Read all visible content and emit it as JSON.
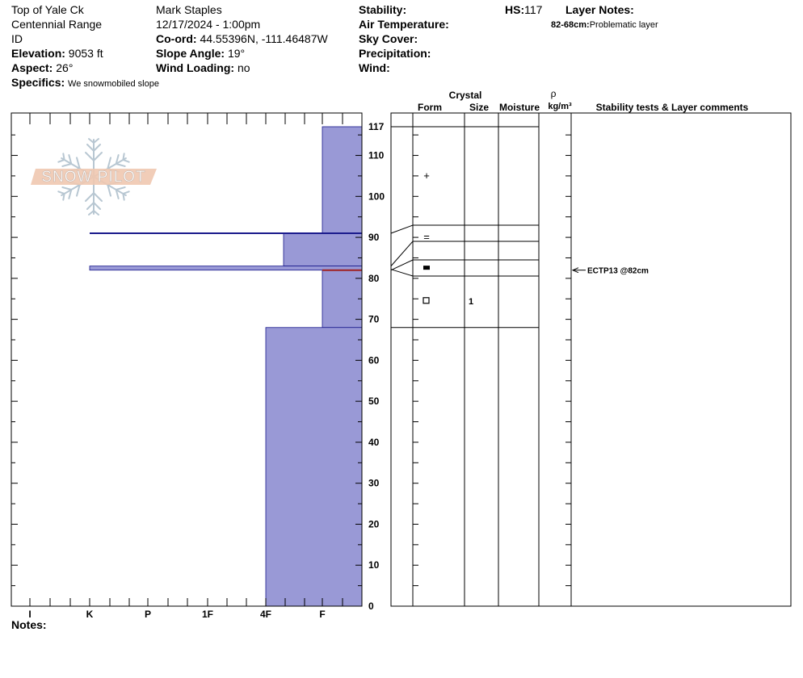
{
  "header": {
    "location": "Top of Yale Ck",
    "range": "Centennial Range",
    "state": "ID",
    "elevation_label": "Elevation:",
    "elevation": "9053 ft",
    "aspect_label": "Aspect:",
    "aspect": "26°",
    "specifics_label": "Specifics:",
    "specifics": "We snowmobiled slope",
    "observer": "Mark Staples",
    "datetime": "12/17/2024 - 1:00pm",
    "coord_label": "Co-ord:",
    "coord": "44.55396N, -111.46487W",
    "slope_label": "Slope Angle:",
    "slope": "19°",
    "wind_loading_label": "Wind Loading:",
    "wind_loading": "no",
    "stability_label": "Stability:",
    "air_temp_label": "Air Temperature:",
    "sky_cover_label": "Sky Cover:",
    "precip_label": "Precipitation:",
    "wind_label": "Wind:",
    "hs_label": "HS:",
    "hs": "117",
    "layer_notes_label": "Layer Notes:",
    "layer_note_range": "82-68cm:",
    "layer_note_text": "Problematic layer",
    "notes_label": "Notes:"
  },
  "table_headers": {
    "crystal": "Crystal",
    "form": "Form",
    "size": "Size",
    "moisture": "Moisture",
    "rho": "ρ",
    "density_unit": "kg/m³",
    "stability_comments": "Stability tests & Layer comments"
  },
  "logo_text": "SNOW PILOT",
  "chart_data": {
    "type": "bar",
    "title": "",
    "xlabel": "",
    "ylabel": "",
    "hardness_scale": [
      "I",
      "K",
      "P",
      "1F",
      "4F",
      "F"
    ],
    "ylim": [
      0,
      117
    ],
    "y_ticks": [
      0,
      10,
      20,
      30,
      40,
      50,
      60,
      70,
      80,
      90,
      100,
      110,
      117
    ],
    "layers": [
      {
        "bottom": 91,
        "top": 117,
        "hardness": "F"
      },
      {
        "bottom": 83,
        "top": 91,
        "hardness": "4F-"
      },
      {
        "bottom": 82,
        "top": 83,
        "hardness": "K"
      },
      {
        "bottom": 68,
        "top": 82,
        "hardness": "F"
      },
      {
        "bottom": 0,
        "top": 68,
        "hardness": "4F"
      }
    ],
    "horizon_lines": [
      {
        "depth": 91,
        "hardness": "K",
        "color": "#1a1a8c"
      },
      {
        "depth": 82,
        "hardness": "F",
        "color": "#a02020"
      }
    ],
    "crystal_forms": [
      {
        "depth": 105,
        "form": "+",
        "size": ""
      },
      {
        "depth": 90,
        "form": "=",
        "size": ""
      },
      {
        "depth": 82.5,
        "form": "■",
        "size": ""
      },
      {
        "depth": 74.5,
        "form": "□",
        "size": "1"
      }
    ],
    "tests": [
      {
        "depth": 82,
        "label": "ECTP13 @82cm"
      }
    ],
    "fill_color": "#9999d6",
    "edge_color": "#1a1a8c"
  }
}
